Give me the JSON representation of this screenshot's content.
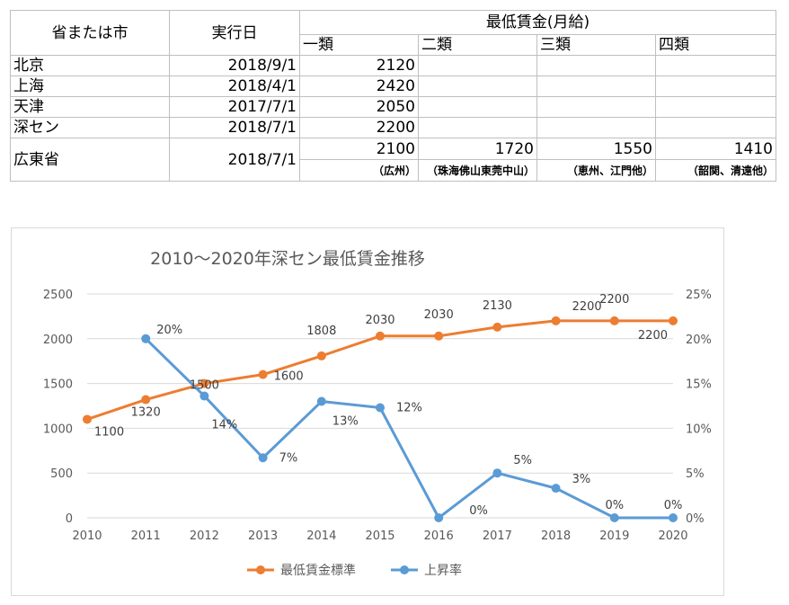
{
  "table": {
    "headers": {
      "region": "省または市",
      "date": "実行日",
      "wage": "最低賃金(月給)",
      "classes": [
        "一類",
        "二類",
        "三類",
        "四類"
      ]
    },
    "rows": [
      {
        "region": "北京",
        "date": "2018/9/1",
        "values": [
          "2120",
          "",
          "",
          ""
        ]
      },
      {
        "region": "上海",
        "date": "2018/4/1",
        "values": [
          "2420",
          "",
          "",
          ""
        ]
      },
      {
        "region": "天津",
        "date": "2017/7/1",
        "values": [
          "2050",
          "",
          "",
          ""
        ]
      },
      {
        "region": "深セン",
        "date": "2018/7/1",
        "values": [
          "2200",
          "",
          "",
          ""
        ]
      }
    ],
    "guangdong": {
      "region": "広東省",
      "date": "2018/7/1",
      "values": [
        "2100",
        "1720",
        "1550",
        "1410"
      ],
      "notes": [
        "（広州）",
        "（珠海佛山東莞中山）",
        "（恵州、江門他）",
        "（韶関、清遠他）"
      ]
    }
  },
  "chart_data": {
    "type": "line",
    "title": "2010～2020年深セン最低賃金推移",
    "x": [
      "2010",
      "2011",
      "2012",
      "2013",
      "2014",
      "2015",
      "2016",
      "2017",
      "2018",
      "2019",
      "2020"
    ],
    "y_left": {
      "min": 0,
      "max": 2500,
      "ticks": [
        "0",
        "500",
        "1000",
        "1500",
        "2000",
        "2500"
      ]
    },
    "y_right": {
      "min": 0,
      "max": 25,
      "ticks": [
        "0%",
        "5%",
        "10%",
        "15%",
        "20%",
        "25%"
      ]
    },
    "series": [
      {
        "name": "最低賃金標準",
        "axis": "left",
        "color": "#ED7D31",
        "values": [
          1100,
          1320,
          1500,
          1600,
          1808,
          2030,
          2030,
          2130,
          2200,
          2200,
          2200
        ],
        "labels": [
          "1100",
          "1320",
          "1500",
          "1600",
          "1808",
          "2030",
          "2030",
          "2130",
          "2200",
          "2200",
          "2200"
        ]
      },
      {
        "name": "上昇率",
        "axis": "right",
        "color": "#5B9BD5",
        "values": [
          null,
          20,
          13.6,
          6.7,
          13,
          12.3,
          0,
          5,
          3.3,
          0,
          0
        ],
        "labels": [
          "",
          "20%",
          "14%",
          "7%",
          "13%",
          "12%",
          "0%",
          "5%",
          "3%",
          "0%",
          "0%"
        ]
      }
    ],
    "legend": "bottom"
  }
}
